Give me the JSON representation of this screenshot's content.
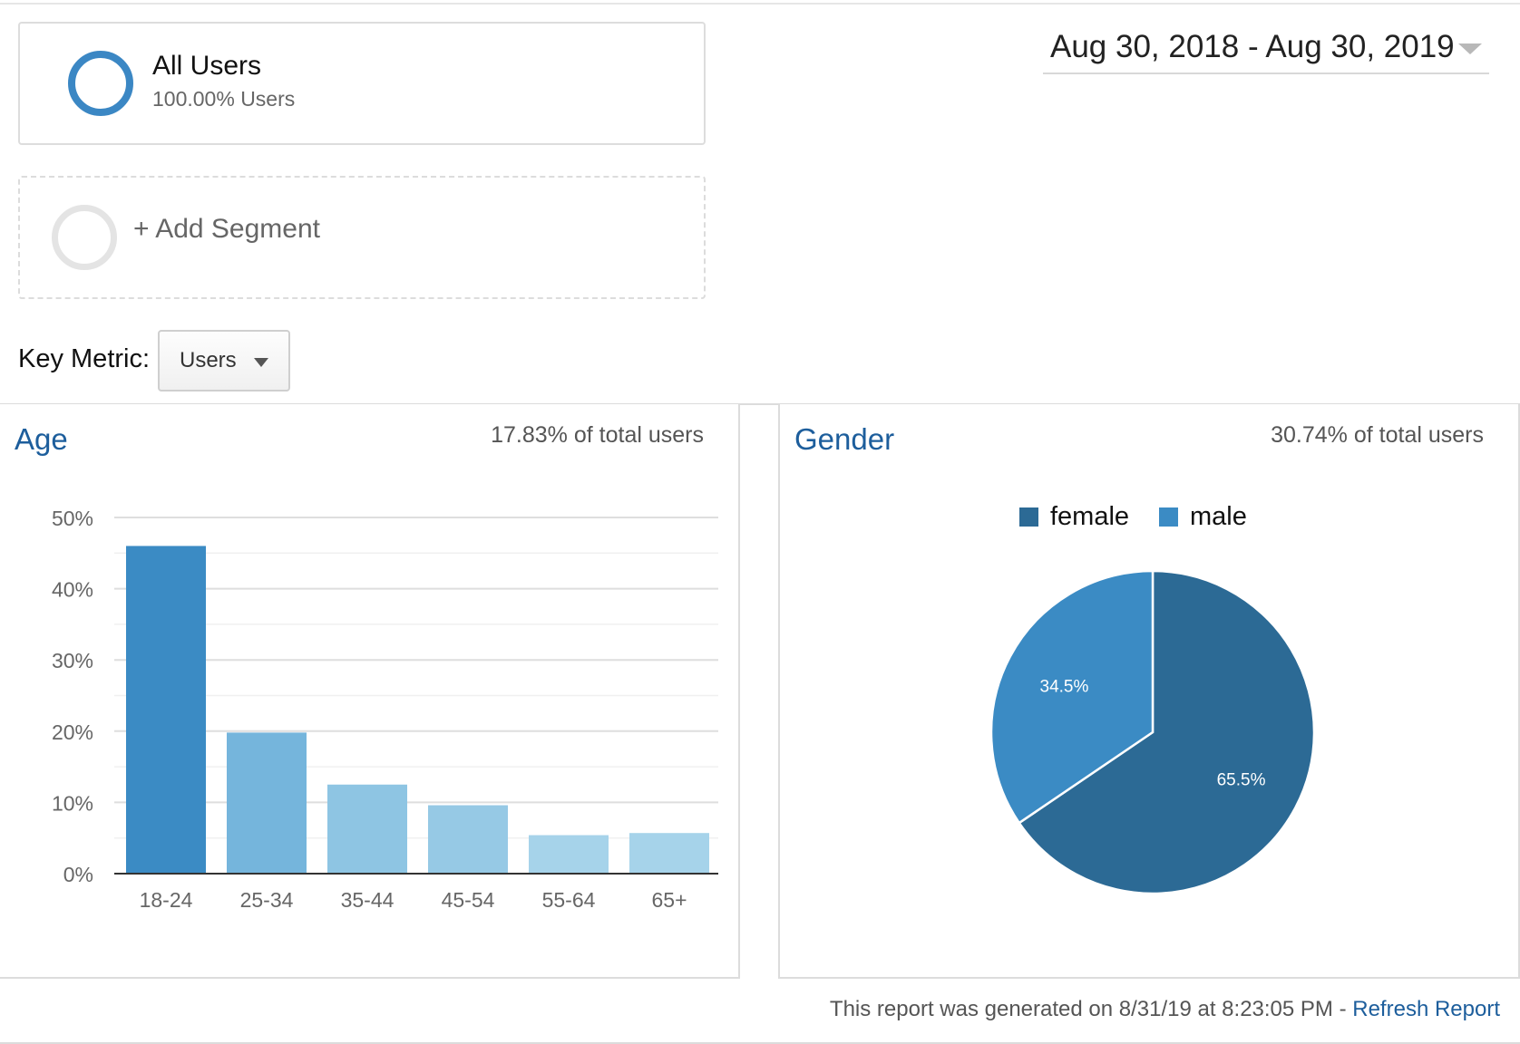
{
  "segments": {
    "active": {
      "name": "All Users",
      "sub": "100.00% Users"
    },
    "add_label": "+ Add Segment"
  },
  "date_range": "Aug 30, 2018 - Aug 30, 2019",
  "key_metric": {
    "label": "Key Metric:",
    "value": "Users"
  },
  "age_panel": {
    "title": "Age",
    "stat": "17.83% of total users"
  },
  "gender_panel": {
    "title": "Gender",
    "stat": "30.74% of total users"
  },
  "colors": {
    "accent": "#1d5e9c",
    "female": "#2c6a95",
    "male": "#3b8bc4",
    "age_bars": [
      "#3b8bc4",
      "#75b5dc",
      "#8ec5e3",
      "#96c9e5",
      "#a6d3ea",
      "#a6d3ea"
    ]
  },
  "chart_data": [
    {
      "type": "bar",
      "title": "Age",
      "categories": [
        "18-24",
        "25-34",
        "35-44",
        "45-54",
        "55-64",
        "65+"
      ],
      "values": [
        46.0,
        19.8,
        12.5,
        9.6,
        5.4,
        5.7
      ],
      "ylim": [
        0,
        50
      ],
      "yticks": [
        "0%",
        "10%",
        "20%",
        "30%",
        "40%",
        "50%"
      ],
      "grid": true
    },
    {
      "type": "pie",
      "title": "Gender",
      "labels": [
        "female",
        "male"
      ],
      "values": [
        65.5,
        34.5
      ],
      "value_labels": [
        "65.5%",
        "34.5%"
      ],
      "legend": "top"
    }
  ],
  "footer": {
    "text": "This report was generated on 8/31/19 at 8:23:05 PM - ",
    "link": "Refresh Report"
  }
}
